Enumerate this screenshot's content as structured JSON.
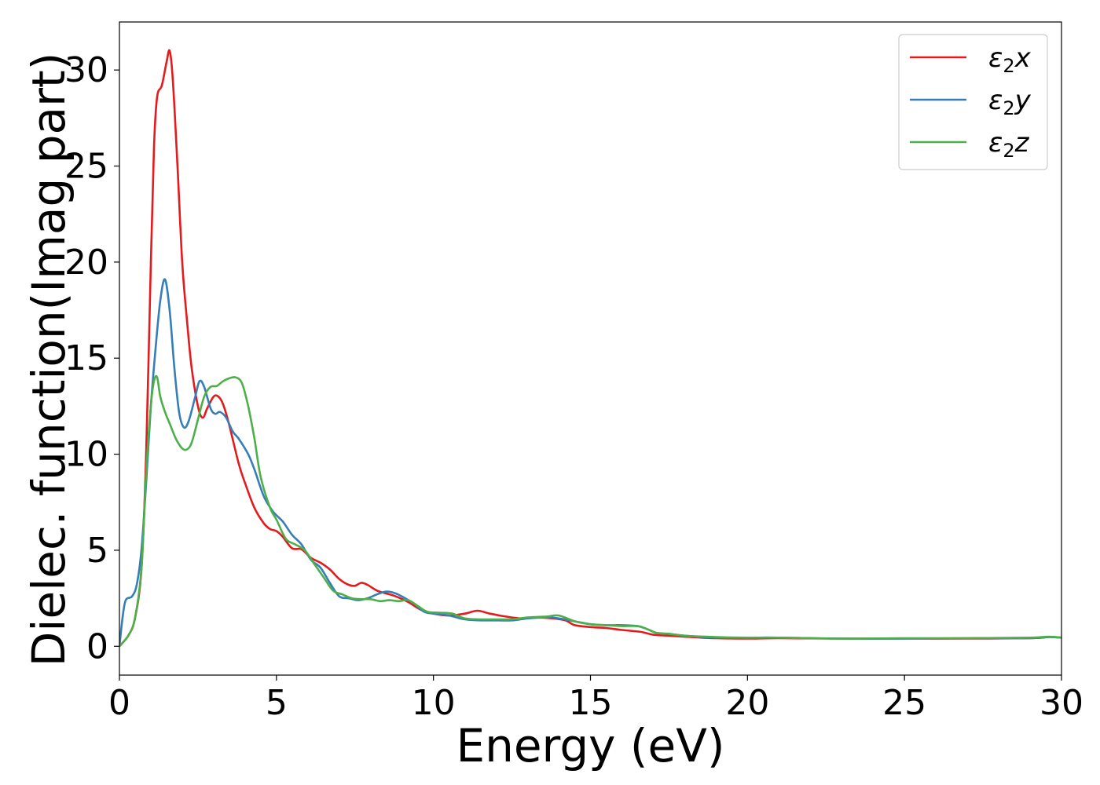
{
  "chart_data": {
    "type": "line",
    "xlabel": "Energy (eV)",
    "ylabel": "Dielec. function(Imag part)",
    "xlim": [
      0,
      30
    ],
    "ylim": [
      -1.5,
      32.5
    ],
    "xticks": [
      0,
      5,
      10,
      15,
      20,
      25,
      30
    ],
    "yticks": [
      0,
      5,
      10,
      15,
      20,
      25,
      30
    ],
    "grid": false,
    "legend_position": "top-right",
    "series": [
      {
        "name": "ε₂x",
        "label_base": "ε",
        "label_sub": "2",
        "label_var": "x",
        "color": "#e41a1c",
        "points": [
          [
            0,
            0
          ],
          [
            0.3,
            0.6
          ],
          [
            0.5,
            1.5
          ],
          [
            0.7,
            4.0
          ],
          [
            0.85,
            10.0
          ],
          [
            1.0,
            20.0
          ],
          [
            1.1,
            26.0
          ],
          [
            1.2,
            28.6
          ],
          [
            1.35,
            29.2
          ],
          [
            1.5,
            30.4
          ],
          [
            1.6,
            31.0
          ],
          [
            1.7,
            29.5
          ],
          [
            1.85,
            25.0
          ],
          [
            2.0,
            20.0
          ],
          [
            2.15,
            17.0
          ],
          [
            2.3,
            14.5
          ],
          [
            2.5,
            12.5
          ],
          [
            2.65,
            11.9
          ],
          [
            2.8,
            12.4
          ],
          [
            3.0,
            13.0
          ],
          [
            3.15,
            13.0
          ],
          [
            3.3,
            12.6
          ],
          [
            3.5,
            11.5
          ],
          [
            3.8,
            9.5
          ],
          [
            4.0,
            8.5
          ],
          [
            4.3,
            7.2
          ],
          [
            4.6,
            6.4
          ],
          [
            4.8,
            6.1
          ],
          [
            5.0,
            6.0
          ],
          [
            5.2,
            5.7
          ],
          [
            5.5,
            5.1
          ],
          [
            5.8,
            5.05
          ],
          [
            6.1,
            4.6
          ],
          [
            6.4,
            4.35
          ],
          [
            6.7,
            4.0
          ],
          [
            7.0,
            3.5
          ],
          [
            7.3,
            3.2
          ],
          [
            7.5,
            3.15
          ],
          [
            7.7,
            3.3
          ],
          [
            7.9,
            3.2
          ],
          [
            8.2,
            2.9
          ],
          [
            8.5,
            2.75
          ],
          [
            8.8,
            2.6
          ],
          [
            9.2,
            2.3
          ],
          [
            9.6,
            1.9
          ],
          [
            10.0,
            1.7
          ],
          [
            10.5,
            1.6
          ],
          [
            11.0,
            1.7
          ],
          [
            11.4,
            1.85
          ],
          [
            11.8,
            1.7
          ],
          [
            12.3,
            1.55
          ],
          [
            12.8,
            1.45
          ],
          [
            13.2,
            1.5
          ],
          [
            13.8,
            1.45
          ],
          [
            14.2,
            1.35
          ],
          [
            14.5,
            1.1
          ],
          [
            15.0,
            1.0
          ],
          [
            15.5,
            0.95
          ],
          [
            16.0,
            0.85
          ],
          [
            16.6,
            0.75
          ],
          [
            17.0,
            0.6
          ],
          [
            17.5,
            0.55
          ],
          [
            18.0,
            0.5
          ],
          [
            19.0,
            0.42
          ],
          [
            20.0,
            0.4
          ],
          [
            21.0,
            0.42
          ],
          [
            23.0,
            0.4
          ],
          [
            25.0,
            0.4
          ],
          [
            27.0,
            0.4
          ],
          [
            29.0,
            0.42
          ],
          [
            29.6,
            0.48
          ],
          [
            30.0,
            0.45
          ]
        ]
      },
      {
        "name": "ε₂y",
        "label_base": "ε",
        "label_sub": "2",
        "label_var": "y",
        "color": "#377eb8",
        "points": [
          [
            0,
            0
          ],
          [
            0.1,
            1.5
          ],
          [
            0.2,
            2.4
          ],
          [
            0.4,
            2.6
          ],
          [
            0.55,
            3.2
          ],
          [
            0.7,
            5.0
          ],
          [
            0.85,
            8.5
          ],
          [
            1.0,
            12.5
          ],
          [
            1.15,
            15.5
          ],
          [
            1.3,
            18.0
          ],
          [
            1.45,
            19.1
          ],
          [
            1.6,
            17.5
          ],
          [
            1.75,
            14.5
          ],
          [
            1.9,
            12.2
          ],
          [
            2.05,
            11.4
          ],
          [
            2.2,
            11.7
          ],
          [
            2.4,
            12.9
          ],
          [
            2.55,
            13.8
          ],
          [
            2.7,
            13.5
          ],
          [
            2.9,
            12.4
          ],
          [
            3.05,
            12.1
          ],
          [
            3.2,
            12.2
          ],
          [
            3.4,
            11.9
          ],
          [
            3.6,
            11.2
          ],
          [
            3.8,
            10.8
          ],
          [
            4.1,
            10.0
          ],
          [
            4.3,
            9.2
          ],
          [
            4.6,
            7.8
          ],
          [
            4.9,
            7.0
          ],
          [
            5.2,
            6.5
          ],
          [
            5.5,
            5.8
          ],
          [
            5.8,
            5.3
          ],
          [
            6.1,
            4.5
          ],
          [
            6.4,
            4.1
          ],
          [
            6.7,
            3.3
          ],
          [
            7.0,
            2.6
          ],
          [
            7.3,
            2.5
          ],
          [
            7.6,
            2.4
          ],
          [
            7.9,
            2.5
          ],
          [
            8.2,
            2.7
          ],
          [
            8.5,
            2.85
          ],
          [
            8.8,
            2.75
          ],
          [
            9.1,
            2.5
          ],
          [
            9.4,
            2.2
          ],
          [
            9.7,
            1.8
          ],
          [
            10.0,
            1.7
          ],
          [
            10.5,
            1.6
          ],
          [
            11.0,
            1.4
          ],
          [
            11.5,
            1.35
          ],
          [
            12.0,
            1.35
          ],
          [
            12.5,
            1.35
          ],
          [
            13.0,
            1.45
          ],
          [
            13.6,
            1.5
          ],
          [
            14.0,
            1.45
          ],
          [
            14.5,
            1.3
          ],
          [
            15.0,
            1.15
          ],
          [
            15.5,
            1.1
          ],
          [
            16.0,
            1.1
          ],
          [
            16.5,
            1.05
          ],
          [
            16.8,
            0.9
          ],
          [
            17.1,
            0.7
          ],
          [
            17.5,
            0.65
          ],
          [
            18.0,
            0.55
          ],
          [
            19.0,
            0.45
          ],
          [
            20.0,
            0.45
          ],
          [
            21.0,
            0.45
          ],
          [
            23.0,
            0.4
          ],
          [
            25.0,
            0.4
          ],
          [
            27.0,
            0.42
          ],
          [
            29.0,
            0.42
          ],
          [
            29.6,
            0.48
          ],
          [
            30.0,
            0.45
          ]
        ]
      },
      {
        "name": "ε₂z",
        "label_base": "ε",
        "label_sub": "2",
        "label_var": "z",
        "color": "#4daf4a",
        "points": [
          [
            0,
            0
          ],
          [
            0.3,
            0.6
          ],
          [
            0.5,
            1.5
          ],
          [
            0.7,
            4.0
          ],
          [
            0.85,
            9.0
          ],
          [
            1.0,
            12.5
          ],
          [
            1.1,
            13.8
          ],
          [
            1.2,
            14.0
          ],
          [
            1.3,
            13.0
          ],
          [
            1.45,
            12.2
          ],
          [
            1.6,
            11.6
          ],
          [
            1.8,
            10.8
          ],
          [
            2.0,
            10.3
          ],
          [
            2.15,
            10.25
          ],
          [
            2.3,
            10.6
          ],
          [
            2.5,
            11.8
          ],
          [
            2.7,
            13.0
          ],
          [
            2.9,
            13.5
          ],
          [
            3.1,
            13.55
          ],
          [
            3.3,
            13.8
          ],
          [
            3.5,
            13.95
          ],
          [
            3.7,
            14.0
          ],
          [
            3.9,
            13.7
          ],
          [
            4.1,
            12.5
          ],
          [
            4.3,
            10.8
          ],
          [
            4.5,
            8.8
          ],
          [
            4.8,
            7.2
          ],
          [
            5.0,
            6.6
          ],
          [
            5.3,
            5.6
          ],
          [
            5.6,
            5.3
          ],
          [
            5.9,
            5.0
          ],
          [
            6.2,
            4.3
          ],
          [
            6.5,
            3.6
          ],
          [
            6.8,
            2.9
          ],
          [
            7.1,
            2.7
          ],
          [
            7.4,
            2.5
          ],
          [
            7.7,
            2.45
          ],
          [
            8.0,
            2.45
          ],
          [
            8.3,
            2.35
          ],
          [
            8.6,
            2.4
          ],
          [
            8.9,
            2.35
          ],
          [
            9.2,
            2.4
          ],
          [
            9.5,
            2.1
          ],
          [
            9.8,
            1.8
          ],
          [
            10.2,
            1.75
          ],
          [
            10.6,
            1.7
          ],
          [
            11.0,
            1.45
          ],
          [
            11.5,
            1.4
          ],
          [
            12.0,
            1.4
          ],
          [
            12.5,
            1.4
          ],
          [
            13.0,
            1.5
          ],
          [
            13.6,
            1.55
          ],
          [
            14.0,
            1.6
          ],
          [
            14.5,
            1.3
          ],
          [
            15.0,
            1.15
          ],
          [
            15.5,
            1.1
          ],
          [
            16.0,
            1.05
          ],
          [
            16.5,
            1.05
          ],
          [
            16.8,
            0.9
          ],
          [
            17.1,
            0.7
          ],
          [
            17.5,
            0.65
          ],
          [
            18.0,
            0.55
          ],
          [
            19.0,
            0.48
          ],
          [
            20.0,
            0.45
          ],
          [
            21.0,
            0.45
          ],
          [
            23.0,
            0.4
          ],
          [
            25.0,
            0.42
          ],
          [
            27.0,
            0.42
          ],
          [
            29.0,
            0.45
          ],
          [
            29.6,
            0.5
          ],
          [
            30.0,
            0.45
          ]
        ]
      }
    ]
  }
}
